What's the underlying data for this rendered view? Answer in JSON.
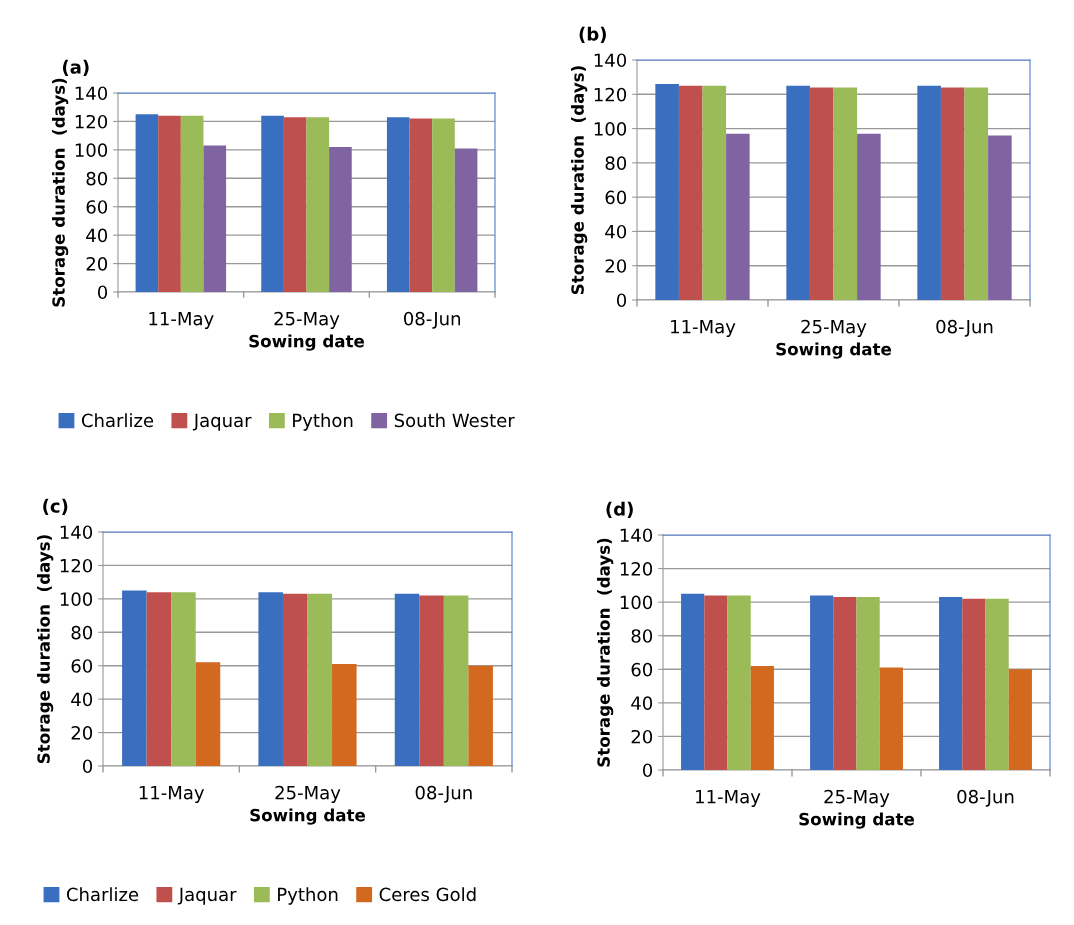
{
  "chart_data": [
    {
      "type": "bar",
      "title": "(a)",
      "xlabel": "Sowing date",
      "ylabel": "Storage duration  (days)",
      "categories": [
        "11-May",
        "25-May",
        "08-Jun"
      ],
      "ylim": [
        0,
        140
      ],
      "yticks": [
        0,
        20,
        40,
        60,
        80,
        100,
        120,
        140
      ],
      "grid": "y",
      "legend": "bottom",
      "series": [
        {
          "name": "Charlize",
          "color": "#3a6fbf",
          "values": [
            125,
            124,
            123
          ]
        },
        {
          "name": "Jaquar",
          "color": "#c0504d",
          "values": [
            124,
            123,
            122
          ]
        },
        {
          "name": "Python",
          "color": "#9bbb59",
          "values": [
            124,
            123,
            122
          ]
        },
        {
          "name": "South Wester",
          "color": "#8064a2",
          "values": [
            103,
            102,
            101
          ]
        }
      ]
    },
    {
      "type": "bar",
      "title": "(b)",
      "xlabel": "Sowing date",
      "ylabel": "Storage duration  (days)",
      "categories": [
        "11-May",
        "25-May",
        "08-Jun"
      ],
      "ylim": [
        0,
        140
      ],
      "yticks": [
        0,
        20,
        40,
        60,
        80,
        100,
        120,
        140
      ],
      "grid": "y",
      "series": [
        {
          "color": "#3a6fbf",
          "values": [
            126,
            125,
            125
          ]
        },
        {
          "color": "#c0504d",
          "values": [
            125,
            124,
            124
          ]
        },
        {
          "color": "#9bbb59",
          "values": [
            125,
            124,
            124
          ]
        },
        {
          "color": "#8064a2",
          "values": [
            97,
            97,
            96
          ]
        }
      ]
    },
    {
      "type": "bar",
      "title": "(c)",
      "xlabel": "Sowing date",
      "ylabel": "Storage duration  (days)",
      "categories": [
        "11-May",
        "25-May",
        "08-Jun"
      ],
      "ylim": [
        0,
        140
      ],
      "yticks": [
        0,
        20,
        40,
        60,
        80,
        100,
        120,
        140
      ],
      "grid": "y",
      "legend": "bottom",
      "series": [
        {
          "name": "Charlize",
          "color": "#3a6fbf",
          "values": [
            105,
            104,
            103
          ]
        },
        {
          "name": "Jaquar",
          "color": "#c0504d",
          "values": [
            104,
            103,
            102
          ]
        },
        {
          "name": "Python",
          "color": "#9bbb59",
          "values": [
            104,
            103,
            102
          ]
        },
        {
          "name": "Ceres Gold",
          "color": "#d2691e",
          "values": [
            62,
            61,
            60
          ]
        }
      ]
    },
    {
      "type": "bar",
      "title": "(d)",
      "xlabel": "Sowing date",
      "ylabel": "Storage duration  (days)",
      "categories": [
        "11-May",
        "25-May",
        "08-Jun"
      ],
      "ylim": [
        0,
        140
      ],
      "yticks": [
        0,
        20,
        40,
        60,
        80,
        100,
        120,
        140
      ],
      "grid": "y",
      "series": [
        {
          "color": "#3a6fbf",
          "values": [
            105,
            104,
            103
          ]
        },
        {
          "color": "#c0504d",
          "values": [
            104,
            103,
            102
          ]
        },
        {
          "color": "#9bbb59",
          "values": [
            104,
            103,
            102
          ]
        },
        {
          "color": "#d2691e",
          "values": [
            62,
            61,
            60
          ]
        }
      ]
    }
  ]
}
